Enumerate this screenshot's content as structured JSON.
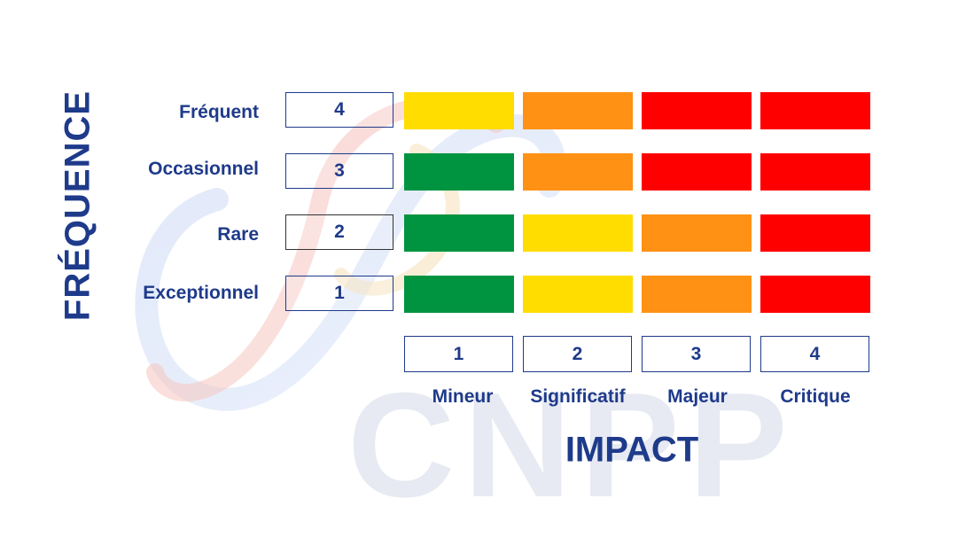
{
  "frequency_axis": {
    "title": "FRÉQUENCE"
  },
  "impact_axis": {
    "title": "IMPACT"
  },
  "rows": [
    {
      "label": "Fréquent",
      "score": "4",
      "cells": [
        "yellow",
        "orange",
        "red",
        "red"
      ]
    },
    {
      "label": "Occasionnel",
      "score": "3",
      "cells": [
        "green",
        "orange",
        "red",
        "red"
      ]
    },
    {
      "label": "Rare",
      "score": "2",
      "cells": [
        "green",
        "yellow",
        "orange",
        "red"
      ]
    },
    {
      "label": "Exceptionnel",
      "score": "1",
      "cells": [
        "green",
        "yellow",
        "orange",
        "red"
      ]
    }
  ],
  "columns": [
    {
      "label": "Mineur",
      "score": "1"
    },
    {
      "label": "Significatif",
      "score": "2"
    },
    {
      "label": "Majeur",
      "score": "3"
    },
    {
      "label": "Critique",
      "score": "4"
    }
  ],
  "colors": {
    "green": "#009440",
    "yellow": "#ffdd00",
    "orange": "#ff9115",
    "red": "#ff0000",
    "text": "#1e3a8a"
  },
  "watermark": {
    "text": "CNPP"
  }
}
